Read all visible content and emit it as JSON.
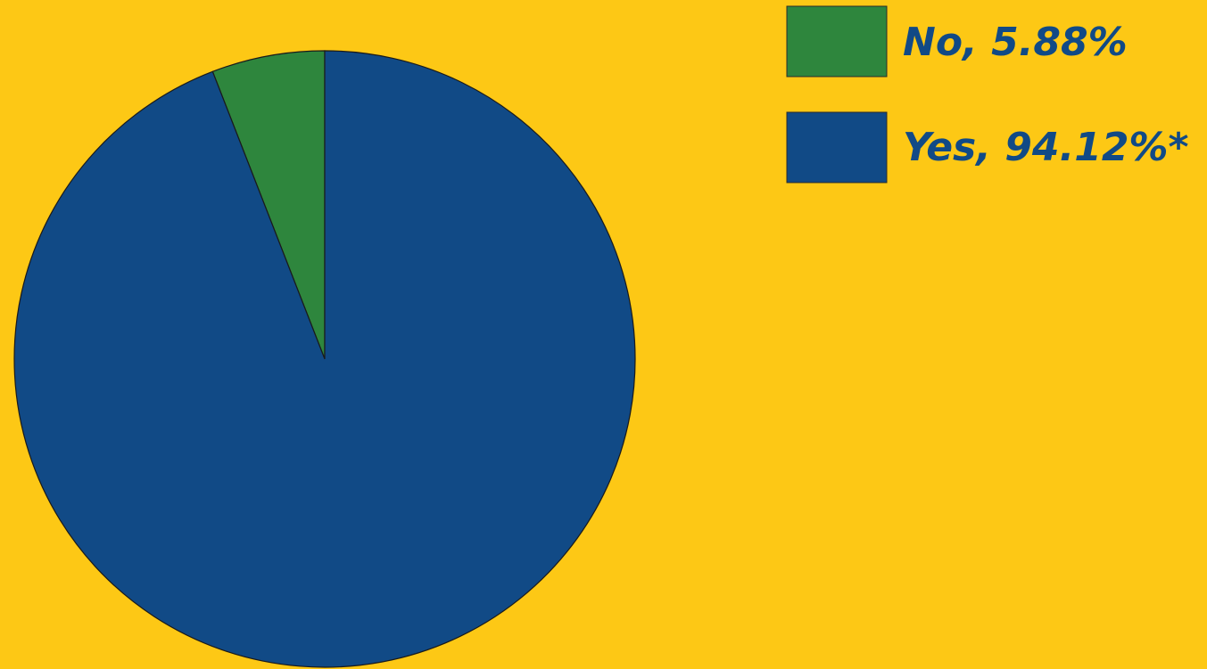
{
  "chart_data": {
    "type": "pie",
    "title": "",
    "slices": [
      {
        "label": "No",
        "value": 5.88,
        "color": "#2E863D",
        "legend_text": "No, 5.88%"
      },
      {
        "label": "Yes",
        "value": 94.12,
        "color": "#114A86",
        "legend_text": "Yes, 94.12%*"
      }
    ],
    "start": "12 o'clock",
    "direction": "counterclockwise for first slice",
    "legend_position": "top-right"
  },
  "colors": {
    "background": "#FDC815",
    "outline": "#1a1a1a"
  }
}
